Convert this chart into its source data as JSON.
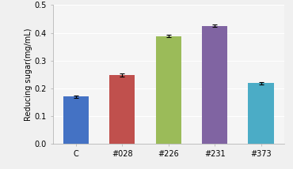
{
  "categories": [
    "C",
    "#028",
    "#226",
    "#231",
    "#373"
  ],
  "values": [
    0.17,
    0.247,
    0.388,
    0.425,
    0.218
  ],
  "errors": [
    0.004,
    0.006,
    0.005,
    0.004,
    0.005
  ],
  "bar_colors": [
    "#4472C4",
    "#C0504D",
    "#9BBB59",
    "#8064A2",
    "#4BACC6"
  ],
  "bar_width": 0.55,
  "ylabel": "Reducing sugar(mg/mL)",
  "ylim": [
    0,
    0.5
  ],
  "yticks": [
    0,
    0.1,
    0.2,
    0.3,
    0.4,
    0.5
  ],
  "background_color": "#f0f0f0",
  "plot_bg_color": "#f5f5f5",
  "grid_color": "#ffffff",
  "ylabel_fontsize": 7,
  "tick_fontsize": 7,
  "capsize": 2,
  "elinewidth": 0.8,
  "capthick": 0.8
}
